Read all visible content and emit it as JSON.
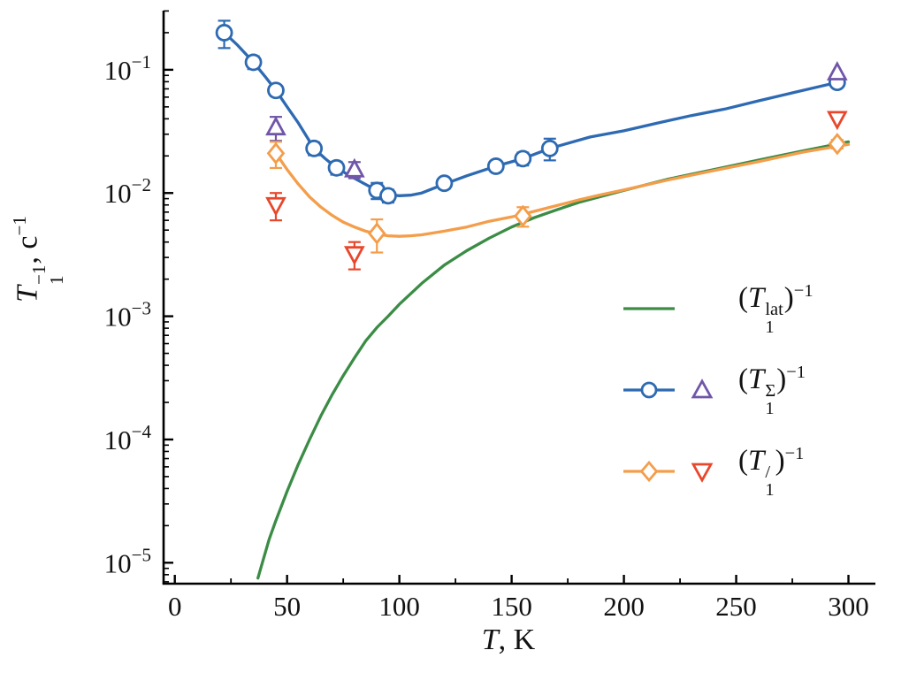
{
  "chart_data": {
    "type": "line",
    "title": "",
    "xlabel": {
      "base": "T",
      "rest": ", K"
    },
    "ylabel": {
      "base": "T",
      "sup": "−1",
      "sub": "1",
      "mid": ", c",
      "exp": "−1"
    },
    "axes": {
      "xmin": -5,
      "xmax": 312,
      "ymin_exp": -5.17,
      "ymax_exp": -0.52,
      "x_scale": "linear",
      "y_scale": "log",
      "grid": false
    },
    "x_ticks": [
      0,
      50,
      100,
      150,
      200,
      250,
      300
    ],
    "x_minor_step": 25,
    "y_tick_exponents": [
      -1,
      -2,
      -3,
      -4,
      -5
    ],
    "series": [
      {
        "name": "T1lat-inverse-line",
        "type": "line",
        "color": "#3b8c45",
        "points": [
          [
            37,
            7.5e-06
          ],
          [
            39,
            1e-05
          ],
          [
            42,
            1.55e-05
          ],
          [
            45,
            2.2e-05
          ],
          [
            50,
            3.8e-05
          ],
          [
            55,
            6.3e-05
          ],
          [
            60,
            0.0001
          ],
          [
            65,
            0.000155
          ],
          [
            70,
            0.00023
          ],
          [
            75,
            0.00033
          ],
          [
            80,
            0.00046
          ],
          [
            85,
            0.00063
          ],
          [
            90,
            0.00081
          ],
          [
            95,
            0.001
          ],
          [
            100,
            0.00125
          ],
          [
            110,
            0.00185
          ],
          [
            120,
            0.0026
          ],
          [
            130,
            0.0034
          ],
          [
            140,
            0.0043
          ],
          [
            150,
            0.0053
          ],
          [
            160,
            0.0063
          ],
          [
            170,
            0.0073
          ],
          [
            180,
            0.0084
          ],
          [
            190,
            0.0094
          ],
          [
            200,
            0.0105
          ],
          [
            220,
            0.013
          ],
          [
            240,
            0.0155
          ],
          [
            260,
            0.0185
          ],
          [
            280,
            0.022
          ],
          [
            300,
            0.026
          ]
        ]
      },
      {
        "name": "T1prime-inverse-line",
        "type": "line",
        "color": "#f49d4a",
        "points": [
          [
            45,
            0.021
          ],
          [
            50,
            0.0155
          ],
          [
            55,
            0.0118
          ],
          [
            60,
            0.0093
          ],
          [
            65,
            0.0077
          ],
          [
            70,
            0.0066
          ],
          [
            75,
            0.0058
          ],
          [
            80,
            0.0053
          ],
          [
            85,
            0.0049
          ],
          [
            90,
            0.00465
          ],
          [
            95,
            0.0045
          ],
          [
            100,
            0.00445
          ],
          [
            105,
            0.0045
          ],
          [
            110,
            0.00458
          ],
          [
            120,
            0.0049
          ],
          [
            130,
            0.0053
          ],
          [
            140,
            0.0059
          ],
          [
            150,
            0.0064
          ],
          [
            160,
            0.0071
          ],
          [
            170,
            0.0079
          ],
          [
            180,
            0.0088
          ],
          [
            190,
            0.0097
          ],
          [
            200,
            0.0106
          ],
          [
            220,
            0.0128
          ],
          [
            240,
            0.0152
          ],
          [
            260,
            0.018
          ],
          [
            280,
            0.0215
          ],
          [
            300,
            0.0248
          ]
        ]
      },
      {
        "name": "T1sum-inverse-line",
        "type": "line",
        "color": "#2e6ab2",
        "points": [
          [
            22,
            0.2
          ],
          [
            28,
            0.158
          ],
          [
            35,
            0.115
          ],
          [
            40,
            0.089
          ],
          [
            45,
            0.068
          ],
          [
            50,
            0.05
          ],
          [
            55,
            0.037
          ],
          [
            62,
            0.023
          ],
          [
            67,
            0.019
          ],
          [
            72,
            0.016
          ],
          [
            78,
            0.0138
          ],
          [
            84,
            0.012
          ],
          [
            90,
            0.0105
          ],
          [
            95,
            0.0097
          ],
          [
            100,
            0.0095
          ],
          [
            105,
            0.0096
          ],
          [
            110,
            0.01
          ],
          [
            120,
            0.0118
          ],
          [
            130,
            0.0138
          ],
          [
            143,
            0.0165
          ],
          [
            155,
            0.019
          ],
          [
            167,
            0.023
          ],
          [
            185,
            0.0285
          ],
          [
            200,
            0.032
          ],
          [
            215,
            0.037
          ],
          [
            230,
            0.0425
          ],
          [
            245,
            0.048
          ],
          [
            260,
            0.056
          ],
          [
            275,
            0.065
          ],
          [
            295,
            0.079
          ]
        ]
      },
      {
        "name": "T1sum-inverse-circles",
        "type": "scatter",
        "marker": "circle",
        "color": "#2e6ab2",
        "points": [
          [
            22,
            0.2,
            0.25
          ],
          [
            35,
            0.115,
            0.12
          ],
          [
            45,
            0.068,
            0.1
          ],
          [
            62,
            0.023,
            0.12
          ],
          [
            72,
            0.016,
            0.12
          ],
          [
            90,
            0.0105,
            0.15
          ],
          [
            95,
            0.0095,
            0.12
          ],
          [
            120,
            0.012,
            0.1
          ],
          [
            143,
            0.0165,
            0.1
          ],
          [
            155,
            0.019,
            0.12
          ],
          [
            167,
            0.023,
            0.2
          ],
          [
            295,
            0.079,
            0.06
          ]
        ]
      },
      {
        "name": "T1sum-inverse-triangles",
        "type": "scatter",
        "marker": "triangle-up",
        "color": "#7056a8",
        "points": [
          [
            45,
            0.034,
            0.22
          ],
          [
            80,
            0.0155,
            0.15
          ],
          [
            295,
            0.095,
            0
          ]
        ]
      },
      {
        "name": "T1prime-inverse-diamonds",
        "type": "scatter",
        "marker": "diamond",
        "color": "#f49d4a",
        "points": [
          [
            45,
            0.021,
            0.24
          ],
          [
            90,
            0.0047,
            0.3
          ],
          [
            155,
            0.0065,
            0.18
          ],
          [
            295,
            0.025,
            0.08
          ]
        ]
      },
      {
        "name": "T1prime-inverse-down-triangles",
        "type": "scatter",
        "marker": "triangle-down",
        "color": "#e8472b",
        "points": [
          [
            45,
            0.008,
            0.25
          ],
          [
            80,
            0.0032,
            0.25
          ],
          [
            295,
            0.04,
            0
          ]
        ]
      }
    ],
    "legend": {
      "position": "right-middle",
      "items": [
        {
          "label": {
            "open": "(",
            "base": "T",
            "sup": "lat",
            "sub": "1",
            "close": ")",
            "exp": "−1"
          },
          "symbols": [
            {
              "kind": "line",
              "color": "#3b8c45"
            }
          ]
        },
        {
          "label": {
            "open": "(",
            "base": "T",
            "sup": "Σ",
            "sub": "1",
            "close": ")",
            "exp": "−1"
          },
          "symbols": [
            {
              "kind": "line-circle",
              "color": "#2e6ab2"
            },
            {
              "kind": "triangle-up",
              "color": "#7056a8"
            }
          ]
        },
        {
          "label": {
            "open": "(",
            "base": "T",
            "sup": "/",
            "sub": "1",
            "close": ")",
            "exp": "−1"
          },
          "symbols": [
            {
              "kind": "line-diamond",
              "color": "#f49d4a"
            },
            {
              "kind": "triangle-down",
              "color": "#e8472b"
            }
          ]
        }
      ]
    }
  }
}
